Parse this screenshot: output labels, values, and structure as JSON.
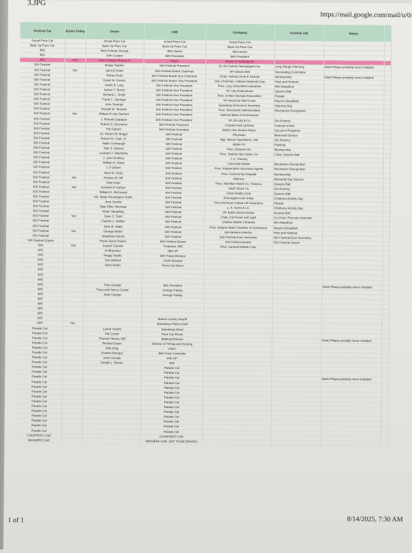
{
  "page": {
    "file_title": "3.JPG",
    "url": "https://mail.google.com/mail/u/0/",
    "page_count": "1 of 1",
    "printed_at": "8/14/2025, 7:30 AM"
  },
  "colors": {
    "header_bg": "#b9d8c6",
    "highlight": "#e883ab"
  },
  "table": {
    "headers": [
      "Festival Car",
      "Exists Today",
      "Driver",
      "USE",
      "Company",
      "Festival Job",
      "Notes:"
    ],
    "rows": [
      [
        "Actual Pace Car",
        "",
        "Actual Pace Car",
        "Actual Pace Car",
        "Actual Pace Car",
        "",
        ""
      ],
      [
        "Back Up Pace Car",
        "",
        "Back Up Pace Car",
        "Back Up Pace Car",
        "Back Up Pace Car",
        "",
        ""
      ],
      [
        "IMS",
        "",
        "Mari Hulman George",
        "IMS Owner",
        "IMS Owner",
        "",
        ""
      ],
      [
        "IMS",
        "",
        "John Cooper",
        "IMS President",
        "IMS President",
        "",
        ""
      ],
      [
        "IMS",
        "Yes",
        "Major William Hudnut III",
        "Mayor",
        "Mayor of Indianapolis",
        "",
        ""
      ],
      [
        "500 Festival",
        "",
        "Marge Tarplee",
        "500 Festival President",
        "Ex Dir Central Newspapers Inc",
        "Long Range Planning",
        "Dash Plaque possibly never installed"
      ],
      [
        "500 Festival",
        "Yes",
        "John B Smith",
        "500 Festival Board Chairman",
        "VP Indiana Bell",
        "Nominating Committee",
        ""
      ],
      [
        "500 Festival",
        "",
        "Robert Hunt",
        "500 Festival Board Vice Chairman",
        "Chair, Hulman Hunt & Nichols",
        "Membership",
        "Dash Plaque possibly never installed"
      ],
      [
        "500 Festival",
        "",
        "David W. Givens",
        "500 Festival Senior Vice President",
        "Vice Chairman, Indiana National Corp",
        "Host and Hostess",
        ""
      ],
      [
        "500 Festival",
        "",
        "Andre B. Lacy",
        "500 Festival Vice President",
        "Pres. Lacy Diversified Industries",
        "Mini Marathon",
        ""
      ],
      [
        "500 Festival",
        "",
        "James T. Morris",
        "500 Festival Vice President",
        "VP, Lilly Endowment",
        "Queens Ball",
        ""
      ],
      [
        "500 Festival",
        "",
        "Richard L. Smith",
        "500 Festival Vice President",
        "Pres. United Savings Association",
        "Parade",
        ""
      ],
      [
        "500 Festival",
        "",
        "Frank C. Springer",
        "500 Festival Vice President",
        "VP American Red Cross",
        "Mayor's Breakfast",
        ""
      ],
      [
        "500 Festival",
        "",
        "June Swango",
        "500 Festival Vice President",
        "Speedway Executive Secretary",
        "Opening Day",
        ""
      ],
      [
        "500 Festival",
        "",
        "Donald W. Tanselle",
        "500 Festival Vice President",
        "Pres. Merchants National Bank",
        "Mechanics Recognition",
        ""
      ],
      [
        "500 Festival",
        "Yes",
        "William R Van Dermen",
        "500 Festival Vice President",
        "National Bank of Greenwood",
        "",
        ""
      ],
      [
        "500 Festival",
        "",
        "J. Richard Zapapas",
        "500 Festival Vice President",
        "VP, Eli Lilly & Co",
        "Gin Rummy",
        ""
      ],
      [
        "500 Festival",
        "",
        "Robert G. Decraene",
        "500 Festival Treasurer",
        "Coopers and Lybrand",
        "Festival of Arts",
        ""
      ],
      [
        "500 Festival",
        "",
        "Pat Osborn",
        "500 Festival Secretary",
        "Butler Univ Alumni Assoc",
        "Souvenir Programs",
        ""
      ],
      [
        "500 Festival",
        "",
        "Dr. Robert W. Briggs",
        "500 Festival",
        "Physician",
        "Memorial Service",
        ""
      ],
      [
        "500 Festival",
        "",
        "Robert M. Clark, Jr.",
        "500 Festival",
        "Mgr. Allison Operations, GM",
        "Gin Rummy",
        ""
      ],
      [
        "500 Festival",
        "",
        "Hallie Crimbaugh",
        "500 Festival",
        "WISH-TV",
        "Publicity",
        ""
      ],
      [
        "500 Festival",
        "",
        "Max S. Danner",
        "500 Festival",
        "Pres. Danners Inc",
        "Membership",
        ""
      ],
      [
        "500 Festival",
        "",
        "Leonard J. Dalehanty",
        "500 Festival",
        "Pres. Stokely Van Camp, Inc",
        "Chair, Queens Ball",
        ""
      ],
      [
        "500 Festival",
        "",
        "J. Lynn Dunkley",
        "500 Festival",
        "J. C. Penney",
        "",
        ""
      ],
      [
        "500 Festival",
        "",
        "William E. Estes",
        "500 Festival",
        "Chevrolet Dealer",
        "Mechanics Recognition",
        ""
      ],
      [
        "500 Festival",
        "",
        "L D Gilbert",
        "500 Festival",
        "Pres. Independent Insurance Agents",
        "Mechanics Recognition",
        ""
      ],
      [
        "500 Festival",
        "",
        "Allen M. Hicks",
        "500 Festival",
        "Pres. Community Hospital",
        "Membership",
        ""
      ],
      [
        "500 Festival",
        "Yes",
        "Reuben B. Hill",
        "500 Festival",
        "Attorney",
        "Memorial Day Service",
        ""
      ],
      [
        "500 Festival",
        "",
        "Dale Kaler",
        "500 Festival",
        "Pres. Hamilton Harris Co, Tobacco",
        "Queens Ball",
        ""
      ],
      [
        "500 Festival",
        "Yes",
        "Kenneth E Keltner",
        "500 Festival",
        "Harff Jones Co",
        "Gin Rummy",
        ""
      ],
      [
        "500 Festival",
        "",
        "William K. McGowan",
        "500 Festival",
        "Circle Realty Corp",
        "Queens Ball",
        ""
      ],
      [
        "500 Festival",
        "",
        "Ms. Marjo Pennington-Smith",
        "500 Festival",
        "Pennington-Line realty",
        "Childrens Activity Day",
        ""
      ],
      [
        "500 Festival",
        "",
        "Jerry Semler",
        "500 Festival",
        "Pres American United Life Insurance",
        "Parade",
        ""
      ],
      [
        "500 Festival",
        "",
        "Dale Ellen Shumate",
        "500 Festival",
        "L. S. Ayres & Co.",
        "Childrens Activity Day",
        ""
      ],
      [
        "500 Festival",
        "",
        "Helen Spradling",
        "500 Festival",
        "VP, Butler Alumni Assoc",
        "Queens Ball",
        ""
      ],
      [
        "500 Festival",
        "Yes",
        "Zane C. Todd",
        "500 Festival",
        "Chair, Ind Power and Light",
        "Co-Chair, Princess Selection",
        ""
      ],
      [
        "500 Festival",
        "",
        "Charles L. Walker",
        "500 Festival",
        "Charles Walker Cleaners",
        "Mini Marathon",
        ""
      ],
      [
        "500 Festival",
        "",
        "John W. Walls",
        "500 Festival",
        "Pres. Indiana State Chamber of Commerce",
        "Mayor's Breakfast",
        ""
      ],
      [
        "500 Festival",
        "Yes",
        "George Welch",
        "500 Festival",
        "GM Western Electric",
        "Host and Hostess",
        ""
      ],
      [
        "500 Festival",
        "",
        "Josephine Hauck",
        "500 Festival",
        "500 Festival Exec Secretary",
        "500 Festival Exec Secretary",
        ""
      ],
      [
        "500 Festival Queen",
        "",
        "Paula Jayne Peelen",
        "500 Festival Queen",
        "500 Festival Queen",
        "500 Festival Queen",
        ""
      ],
      [
        "IMS",
        "Yes",
        "Joseph Cloutier",
        "Treasurer, IMS",
        "Pres. General Motels Corp",
        "",
        ""
      ],
      [
        "IMS",
        "",
        "Al Bloemker",
        "IMS VP",
        "",
        "",
        ""
      ],
      [
        "IMS",
        "",
        "Peggy Swalls",
        "IMS Ticket Director",
        "",
        "",
        ""
      ],
      [
        "IMS",
        "",
        "Tom Binford",
        "Chief Steward",
        "",
        "",
        ""
      ],
      [
        "IMS",
        "",
        "Duke Nalon",
        "Pace Car Driver",
        "",
        "",
        ""
      ],
      [
        "IMS",
        "",
        "",
        "",
        "",
        "",
        ""
      ],
      [
        "IMS",
        "",
        "",
        "",
        "",
        "",
        ""
      ],
      [
        "IMS",
        "",
        "",
        "",
        "",
        "",
        ""
      ],
      [
        "IMS",
        "",
        "Tony George",
        "IMS President",
        "",
        "",
        "Dash Plaque possibly never installed"
      ],
      [
        "IMS",
        "",
        "Tracy and Nancy Gunter",
        "George Family",
        "",
        "",
        ""
      ],
      [
        "IMS",
        "",
        "Josie George",
        "George Family",
        "",
        "",
        ""
      ],
      [
        "IMS",
        "",
        "",
        "",
        "",
        "",
        ""
      ],
      [
        "IMS",
        "",
        "",
        "",
        "",
        "",
        ""
      ],
      [
        "IMS",
        "",
        "",
        "",
        "",
        "",
        ""
      ],
      [
        "IMS",
        "",
        "",
        "",
        "",
        "",
        ""
      ],
      [
        "IMS",
        "",
        "",
        "Marion County Sheriff",
        "",
        "",
        ""
      ],
      [
        "IMS",
        "Yes",
        "",
        "Speedway Police Chief",
        "",
        "",
        ""
      ],
      [
        "Parade Car",
        "",
        "Laurie Swartz",
        "Speedway Motel",
        "",
        "",
        ""
      ],
      [
        "Parade Car",
        "",
        "Pat Cronin",
        "Pace Car Room",
        "",
        "",
        ""
      ],
      [
        "Parade Car",
        "",
        "Thomas Hanna, MD",
        "Medical Director",
        "",
        "",
        "Dash Plaque possibly never installed"
      ],
      [
        "Parade Car",
        "",
        "Richard Sauer",
        "Director of Timing and Scoring",
        "",
        "",
        ""
      ],
      [
        "Parade Car",
        "",
        "Dick King",
        "USAC",
        "",
        "",
        ""
      ],
      [
        "Parade Car",
        "",
        "Charles Metzger",
        "IMS Track Controller",
        "",
        "",
        ""
      ],
      [
        "Parade Car",
        "",
        "Josie George",
        "IMS VP",
        "",
        "",
        ""
      ],
      [
        "Parade Car",
        "",
        "Gerald L. Shores",
        "IMS",
        "",
        "",
        ""
      ],
      [
        "Parade Car",
        "",
        "",
        "Parade Car",
        "",
        "",
        ""
      ],
      [
        "Parade Car",
        "",
        "",
        "Parade Car",
        "",
        "",
        ""
      ],
      [
        "Parade Car",
        "",
        "",
        "Parade Car",
        "",
        "",
        "Dash Plaque possibly never installed"
      ],
      [
        "Parade Car",
        "",
        "",
        "Parade Car",
        "",
        "",
        ""
      ],
      [
        "Parade Car",
        "",
        "",
        "Parade Car",
        "",
        "",
        ""
      ],
      [
        "Parade Car",
        "",
        "",
        "Parade Car",
        "",
        "",
        ""
      ],
      [
        "Parade Car",
        "",
        "",
        "Parade Car",
        "",
        "",
        ""
      ],
      [
        "Parade Car",
        "",
        "",
        "Parade Car",
        "",
        "",
        ""
      ],
      [
        "Parade Car",
        "",
        "",
        "Parade Car",
        "",
        "",
        ""
      ],
      [
        "Parade Car",
        "",
        "",
        "Parade Car",
        "",
        "",
        ""
      ],
      [
        "Parade Car",
        "",
        "",
        "Parade Car",
        "",
        "",
        ""
      ],
      [
        "Parade Car",
        "",
        "",
        "Parade Car",
        "",
        "",
        ""
      ],
      [
        "Parade Car",
        "",
        "",
        "Parade Car",
        "",
        "",
        ""
      ],
      [
        "Parade Car",
        "",
        "",
        "Parade Car",
        "",
        "",
        ""
      ],
      [
        "COURTESY CAR",
        "",
        "",
        "COURTESY CAR",
        "",
        "",
        ""
      ],
      [
        "WINNERS CAR",
        "",
        "",
        "WINNERS CAR. NOT TO BE DRIVEN",
        "",
        "",
        ""
      ]
    ],
    "highlighted_row": 4
  }
}
